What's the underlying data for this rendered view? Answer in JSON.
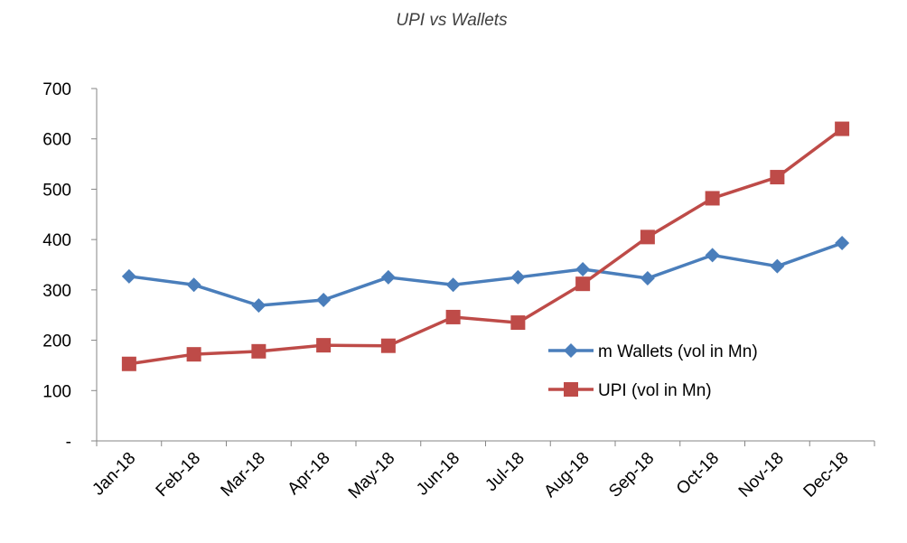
{
  "chart_data": {
    "type": "line",
    "title": "UPI vs Wallets",
    "xlabel": "",
    "ylabel": "",
    "categories": [
      "Jan-18",
      "Feb-18",
      "Mar-18",
      "Apr-18",
      "May-18",
      "Jun-18",
      "Jul-18",
      "Aug-18",
      "Sep-18",
      "Oct-18",
      "Nov-18",
      "Dec-18"
    ],
    "ylim": [
      0,
      700
    ],
    "yticks": [
      0,
      100,
      200,
      300,
      400,
      500,
      600,
      700
    ],
    "ytick_labels": [
      "-",
      "100",
      "200",
      "300",
      "400",
      "500",
      "600",
      "700"
    ],
    "grid": false,
    "legend_position": "right",
    "series": [
      {
        "name": "m Wallets (vol in Mn)",
        "color": "#4a7ebb",
        "marker": "diamond",
        "values": [
          327,
          310,
          269,
          280,
          325,
          310,
          325,
          341,
          323,
          369,
          347,
          393
        ]
      },
      {
        "name": "UPI (vol in Mn)",
        "color": "#be4b48",
        "marker": "square",
        "values": [
          153,
          172,
          178,
          190,
          189,
          246,
          235,
          312,
          405,
          482,
          524,
          620
        ]
      }
    ]
  }
}
